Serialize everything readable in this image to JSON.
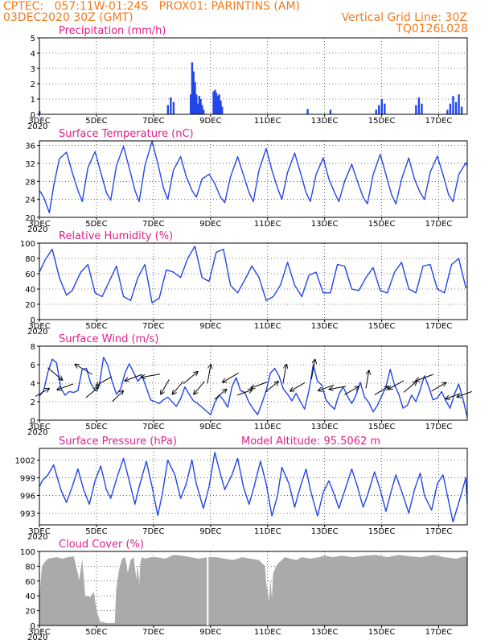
{
  "header": {
    "line1_left": "CPTEC:   057:11W-01:24S   PROX01: PARINTINS (AM)",
    "line2_left": "03DEC2020 30Z (GMT)",
    "line2_right": "Vertical Grid Line: 30Z",
    "line3_right": "TQ0126L028"
  },
  "colors": {
    "header_text": "#f07b1e",
    "panel_title": "#e0208a",
    "series_line": "#2346e8",
    "cloud_fill": "#aaaaaa",
    "grid": "#000000"
  },
  "x_axis": {
    "tick_labels": [
      "3DEC",
      "5DEC",
      "7DEC",
      "9DEC",
      "11DEC",
      "13DEC",
      "15DEC",
      "17DEC"
    ],
    "tick_days": [
      3,
      5,
      7,
      9,
      11,
      13,
      15,
      17
    ],
    "range_days": [
      3,
      18
    ],
    "year_mark": "2020"
  },
  "chart_data": [
    {
      "id": "precip",
      "type": "bar",
      "title": "Precipitation (mm/h)",
      "ylim": [
        0,
        5
      ],
      "yticks": [
        0,
        1,
        2,
        3,
        4,
        5
      ],
      "grid": true,
      "x": [
        3.0,
        7.5,
        7.6,
        7.7,
        8.3,
        8.35,
        8.4,
        8.45,
        8.5,
        8.55,
        8.6,
        8.65,
        8.7,
        8.75,
        9.1,
        9.15,
        9.2,
        9.25,
        9.3,
        9.35,
        9.4,
        12.4,
        13.2,
        14.8,
        14.9,
        15.0,
        15.1,
        16.2,
        16.3,
        16.4,
        17.3,
        17.4,
        17.5,
        17.6,
        17.7,
        17.8
      ],
      "values": [
        0.2,
        0.6,
        1.1,
        0.8,
        1.3,
        3.4,
        2.8,
        2.1,
        1.3,
        0.7,
        1.2,
        1.0,
        0.6,
        0.3,
        1.5,
        1.6,
        1.4,
        1.2,
        1.3,
        0.9,
        0.5,
        0.35,
        0.3,
        0.3,
        0.6,
        1.0,
        0.7,
        0.6,
        1.1,
        0.7,
        0.3,
        0.7,
        1.2,
        0.8,
        1.3,
        0.5
      ]
    },
    {
      "id": "temp",
      "type": "line",
      "title": "Surface Temperature (nC)",
      "ylim": [
        20,
        37
      ],
      "yticks": [
        20,
        24,
        28,
        32,
        36
      ],
      "grid": true,
      "x": [
        3.0,
        3.15,
        3.35,
        3.5,
        3.7,
        3.95,
        4.15,
        4.35,
        4.5,
        4.7,
        4.95,
        5.15,
        5.35,
        5.5,
        5.7,
        5.95,
        6.15,
        6.35,
        6.5,
        6.7,
        6.95,
        7.15,
        7.35,
        7.5,
        7.7,
        7.95,
        8.15,
        8.35,
        8.5,
        8.7,
        8.95,
        9.15,
        9.35,
        9.5,
        9.7,
        9.95,
        10.15,
        10.35,
        10.5,
        10.7,
        10.95,
        11.15,
        11.35,
        11.5,
        11.7,
        11.95,
        12.15,
        12.35,
        12.5,
        12.7,
        12.95,
        13.15,
        13.35,
        13.5,
        13.7,
        13.95,
        14.15,
        14.35,
        14.5,
        14.7,
        14.95,
        15.15,
        15.35,
        15.5,
        15.7,
        15.95,
        16.15,
        16.35,
        16.5,
        16.7,
        16.95,
        17.15,
        17.35,
        17.5,
        17.7,
        17.95,
        18.0
      ],
      "values": [
        26.0,
        24.5,
        21.0,
        27.0,
        33.0,
        34.5,
        30.0,
        26.0,
        23.5,
        31.0,
        34.6,
        30.0,
        25.5,
        23.8,
        31.5,
        35.8,
        31.0,
        26.0,
        23.5,
        31.5,
        36.9,
        32.0,
        26.5,
        24.0,
        30.5,
        33.5,
        29.0,
        26.0,
        24.5,
        28.5,
        29.6,
        27.5,
        24.5,
        23.3,
        29.0,
        33.5,
        29.5,
        25.5,
        23.5,
        30.5,
        35.3,
        30.5,
        26.5,
        24.0,
        30.0,
        34.3,
        30.0,
        25.5,
        23.5,
        29.5,
        33.2,
        28.5,
        25.5,
        23.5,
        28.0,
        31.8,
        28.0,
        24.5,
        23.0,
        29.5,
        34.0,
        29.5,
        25.0,
        23.0,
        28.5,
        33.2,
        28.5,
        25.5,
        24.0,
        30.0,
        33.6,
        29.5,
        25.0,
        23.5,
        29.5,
        32.1,
        31.5
      ]
    },
    {
      "id": "rh",
      "type": "line",
      "title": "Relative Humidity (%)",
      "ylim": [
        0,
        100
      ],
      "yticks": [
        0,
        20,
        40,
        60,
        80,
        100
      ],
      "grid": true,
      "x": [
        3.0,
        3.2,
        3.45,
        3.7,
        3.95,
        4.15,
        4.45,
        4.7,
        4.95,
        5.2,
        5.45,
        5.7,
        5.95,
        6.2,
        6.45,
        6.7,
        6.95,
        7.2,
        7.45,
        7.7,
        7.95,
        8.2,
        8.45,
        8.7,
        8.95,
        9.2,
        9.45,
        9.7,
        9.95,
        10.2,
        10.45,
        10.7,
        10.95,
        11.2,
        11.45,
        11.7,
        11.95,
        12.2,
        12.45,
        12.7,
        12.95,
        13.2,
        13.45,
        13.7,
        13.95,
        14.2,
        14.45,
        14.7,
        14.95,
        15.2,
        15.45,
        15.7,
        15.95,
        16.2,
        16.45,
        16.7,
        16.95,
        17.2,
        17.45,
        17.7,
        17.95,
        18.0
      ],
      "values": [
        62,
        78,
        92,
        55,
        32,
        38,
        62,
        72,
        35,
        30,
        50,
        70,
        30,
        25,
        55,
        72,
        22,
        28,
        65,
        62,
        55,
        80,
        96,
        55,
        50,
        88,
        92,
        45,
        35,
        52,
        70,
        55,
        25,
        30,
        45,
        75,
        45,
        30,
        58,
        62,
        35,
        35,
        72,
        70,
        40,
        38,
        55,
        68,
        38,
        35,
        62,
        75,
        40,
        35,
        70,
        72,
        40,
        35,
        72,
        80,
        42,
        42
      ]
    },
    {
      "id": "wind",
      "type": "line",
      "title": "Surface Wind (m/s)",
      "ylim": [
        0,
        8
      ],
      "yticks": [
        0,
        2,
        4,
        6,
        8
      ],
      "grid": true,
      "x": [
        3.0,
        3.15,
        3.3,
        3.45,
        3.6,
        3.75,
        3.9,
        4.05,
        4.2,
        4.35,
        4.5,
        4.65,
        4.8,
        4.95,
        5.1,
        5.25,
        5.4,
        5.55,
        5.7,
        5.85,
        6.0,
        6.15,
        6.3,
        6.45,
        6.6,
        6.75,
        6.9,
        7.05,
        7.2,
        7.35,
        7.5,
        7.65,
        7.8,
        7.95,
        8.1,
        8.25,
        8.4,
        8.55,
        8.7,
        8.85,
        9.0,
        9.15,
        9.3,
        9.45,
        9.6,
        9.75,
        9.9,
        10.05,
        10.2,
        10.35,
        10.5,
        10.65,
        10.8,
        10.95,
        11.1,
        11.25,
        11.4,
        11.55,
        11.7,
        11.85,
        12.0,
        12.15,
        12.3,
        12.45,
        12.6,
        12.75,
        12.9,
        13.05,
        13.2,
        13.35,
        13.5,
        13.65,
        13.8,
        13.95,
        14.1,
        14.25,
        14.4,
        14.55,
        14.7,
        14.85,
        15.0,
        15.15,
        15.3,
        15.45,
        15.6,
        15.75,
        15.9,
        16.05,
        16.2,
        16.35,
        16.5,
        16.65,
        16.8,
        16.95,
        17.1,
        17.25,
        17.4,
        17.55,
        17.7,
        17.85,
        18.0
      ],
      "values": [
        2.6,
        3.2,
        5.2,
        6.6,
        6.2,
        3.5,
        2.7,
        3.1,
        3.0,
        3.2,
        5.5,
        5.6,
        4.0,
        3.2,
        3.8,
        6.8,
        5.9,
        4.2,
        2.8,
        3.4,
        5.1,
        6.1,
        5.2,
        4.2,
        4.8,
        3.5,
        2.2,
        2.0,
        1.8,
        2.2,
        2.5,
        2.0,
        1.5,
        2.3,
        3.6,
        2.8,
        2.1,
        1.8,
        1.4,
        1.0,
        0.6,
        1.9,
        2.7,
        2.2,
        1.4,
        3.6,
        4.6,
        3.2,
        3.0,
        1.9,
        1.2,
        0.6,
        1.8,
        3.2,
        5.1,
        5.6,
        4.8,
        3.4,
        2.8,
        2.1,
        2.9,
        2.0,
        1.2,
        3.2,
        6.0,
        4.2,
        3.8,
        2.2,
        1.6,
        1.2,
        2.8,
        3.6,
        2.6,
        1.8,
        2.7,
        4.1,
        2.5,
        1.9,
        0.9,
        1.6,
        2.6,
        3.6,
        5.5,
        3.8,
        2.8,
        1.3,
        1.6,
        2.7,
        2.0,
        3.3,
        4.8,
        3.6,
        2.2,
        2.4,
        3.1,
        2.1,
        1.3,
        2.8,
        3.9,
        2.3,
        0.3
      ]
    },
    {
      "id": "pressure",
      "type": "line",
      "title": "Surface Pressure (hPa)",
      "annotation": "Model Altitude: 95.5062 m",
      "ylim": [
        991,
        1004
      ],
      "yticks": [
        993,
        996,
        999,
        1002
      ],
      "grid": true,
      "x": [
        3.0,
        3.1,
        3.3,
        3.5,
        3.75,
        3.95,
        4.15,
        4.35,
        4.55,
        4.75,
        4.95,
        5.15,
        5.35,
        5.5,
        5.75,
        5.95,
        6.15,
        6.35,
        6.5,
        6.75,
        6.95,
        7.15,
        7.3,
        7.5,
        7.75,
        7.95,
        8.15,
        8.35,
        8.5,
        8.75,
        8.95,
        9.15,
        9.3,
        9.5,
        9.75,
        9.95,
        10.15,
        10.35,
        10.5,
        10.75,
        10.95,
        11.15,
        11.35,
        11.5,
        11.75,
        11.95,
        12.15,
        12.35,
        12.5,
        12.75,
        12.95,
        13.15,
        13.35,
        13.5,
        13.75,
        13.95,
        14.15,
        14.35,
        14.5,
        14.75,
        14.95,
        15.15,
        15.35,
        15.5,
        15.75,
        15.95,
        16.15,
        16.35,
        16.5,
        16.75,
        16.95,
        17.15,
        17.35,
        17.5,
        17.75,
        17.95,
        18.0
      ],
      "values": [
        997.5,
        998.5,
        999.5,
        1001.2,
        997.0,
        994.8,
        997.5,
        1000.5,
        997.0,
        994.5,
        998.5,
        1001.0,
        997.0,
        995.5,
        999.5,
        1002.3,
        998.5,
        994.5,
        997.5,
        1001.8,
        997.5,
        992.6,
        996.0,
        1002.0,
        999.5,
        995.5,
        998.0,
        1002.0,
        998.0,
        993.8,
        997.5,
        1003.3,
        1000.5,
        997.0,
        999.5,
        1002.3,
        997.5,
        994.5,
        997.0,
        1001.8,
        998.0,
        992.5,
        996.0,
        1000.8,
        998.0,
        994.0,
        997.5,
        1000.5,
        997.0,
        992.5,
        996.5,
        998.5,
        996.0,
        993.8,
        997.5,
        1000.5,
        997.5,
        994.0,
        996.0,
        1000.0,
        997.0,
        993.3,
        997.0,
        999.5,
        996.0,
        993.0,
        997.0,
        999.8,
        996.0,
        993.5,
        998.0,
        999.5,
        995.0,
        991.5,
        995.5,
        999.0,
        994.5
      ]
    },
    {
      "id": "cloud",
      "type": "area",
      "title": "Cloud Cover (%)",
      "ylim": [
        0,
        100
      ],
      "yticks": [
        0,
        20,
        40,
        60,
        80,
        100
      ],
      "grid": true,
      "x": [
        3.0,
        3.05,
        3.1,
        3.2,
        3.3,
        3.6,
        3.8,
        4.0,
        4.2,
        4.4,
        4.5,
        4.6,
        4.8,
        4.9,
        5.0,
        5.1,
        5.15,
        5.2,
        5.25,
        5.35,
        5.45,
        5.55,
        5.65,
        5.7,
        5.8,
        5.9,
        6.0,
        6.1,
        6.2,
        6.3,
        6.4,
        6.45,
        6.5,
        6.55,
        6.6,
        6.7,
        6.9,
        7.1,
        7.4,
        7.7,
        8.0,
        8.3,
        8.6,
        8.9,
        9.2,
        9.5,
        9.8,
        10.1,
        10.4,
        10.7,
        10.9,
        10.95,
        11.0,
        11.05,
        11.1,
        11.15,
        11.2,
        11.3,
        11.4,
        11.5,
        11.6,
        11.8,
        12.0,
        12.2,
        12.5,
        12.8,
        13.0,
        13.3,
        13.6,
        14.0,
        14.4,
        14.8,
        15.2,
        15.6,
        16.0,
        16.4,
        16.8,
        17.2,
        17.6,
        17.9,
        18.0
      ],
      "values": [
        30,
        60,
        80,
        86,
        90,
        92,
        90,
        92,
        93,
        60,
        88,
        40,
        38,
        45,
        20,
        8,
        3,
        5,
        4,
        3,
        3,
        3,
        3,
        50,
        75,
        90,
        92,
        70,
        88,
        92,
        60,
        80,
        50,
        85,
        92,
        90,
        92,
        92,
        90,
        95,
        94,
        92,
        90,
        92,
        92,
        90,
        88,
        92,
        90,
        88,
        80,
        55,
        45,
        30,
        60,
        30,
        70,
        80,
        85,
        88,
        92,
        90,
        88,
        92,
        90,
        92,
        94,
        92,
        94,
        92,
        94,
        95,
        92,
        95,
        93,
        92,
        95,
        92,
        90,
        93,
        92
      ]
    }
  ],
  "wind_arrows": [
    {
      "day": 3.1,
      "speed": 3.0,
      "dir_deg": 30
    },
    {
      "day": 3.55,
      "speed": 5.0,
      "dir_deg": -40
    },
    {
      "day": 3.9,
      "speed": 3.6,
      "dir_deg": 200
    },
    {
      "day": 4.55,
      "speed": 5.5,
      "dir_deg": 150
    },
    {
      "day": 4.85,
      "speed": 3.0,
      "dir_deg": 40
    },
    {
      "day": 5.25,
      "speed": 4.2,
      "dir_deg": 210
    },
    {
      "day": 5.75,
      "speed": 2.6,
      "dir_deg": 45
    },
    {
      "day": 6.3,
      "speed": 4.6,
      "dir_deg": 200
    },
    {
      "day": 6.9,
      "speed": 4.8,
      "dir_deg": 190
    },
    {
      "day": 7.4,
      "speed": 3.6,
      "dir_deg": 240
    },
    {
      "day": 7.85,
      "speed": 3.5,
      "dir_deg": 230
    },
    {
      "day": 8.3,
      "speed": 4.6,
      "dir_deg": 40
    },
    {
      "day": 8.6,
      "speed": 3.5,
      "dir_deg": 230
    },
    {
      "day": 8.95,
      "speed": 5.0,
      "dir_deg": 80
    },
    {
      "day": 9.35,
      "speed": 2.8,
      "dir_deg": 40
    },
    {
      "day": 9.7,
      "speed": 4.6,
      "dir_deg": 210
    },
    {
      "day": 10.2,
      "speed": 3.0,
      "dir_deg": 20
    },
    {
      "day": 10.7,
      "speed": 3.8,
      "dir_deg": 200
    },
    {
      "day": 11.15,
      "speed": 3.6,
      "dir_deg": 40
    },
    {
      "day": 11.6,
      "speed": 5.0,
      "dir_deg": 80
    },
    {
      "day": 12.05,
      "speed": 3.6,
      "dir_deg": 210
    },
    {
      "day": 12.6,
      "speed": 5.5,
      "dir_deg": 80
    },
    {
      "day": 13.05,
      "speed": 3.5,
      "dir_deg": 200
    },
    {
      "day": 13.45,
      "speed": 3.5,
      "dir_deg": 190
    },
    {
      "day": 13.95,
      "speed": 3.2,
      "dir_deg": 30
    },
    {
      "day": 14.5,
      "speed": 4.4,
      "dir_deg": 80
    },
    {
      "day": 15.0,
      "speed": 3.2,
      "dir_deg": 30
    },
    {
      "day": 15.5,
      "speed": 3.8,
      "dir_deg": 210
    },
    {
      "day": 16.0,
      "speed": 3.6,
      "dir_deg": 40
    },
    {
      "day": 16.5,
      "speed": 4.6,
      "dir_deg": 200
    },
    {
      "day": 17.0,
      "speed": 3.6,
      "dir_deg": 30
    },
    {
      "day": 17.5,
      "speed": 2.6,
      "dir_deg": 200
    },
    {
      "day": 17.9,
      "speed": 2.8,
      "dir_deg": 200
    }
  ]
}
